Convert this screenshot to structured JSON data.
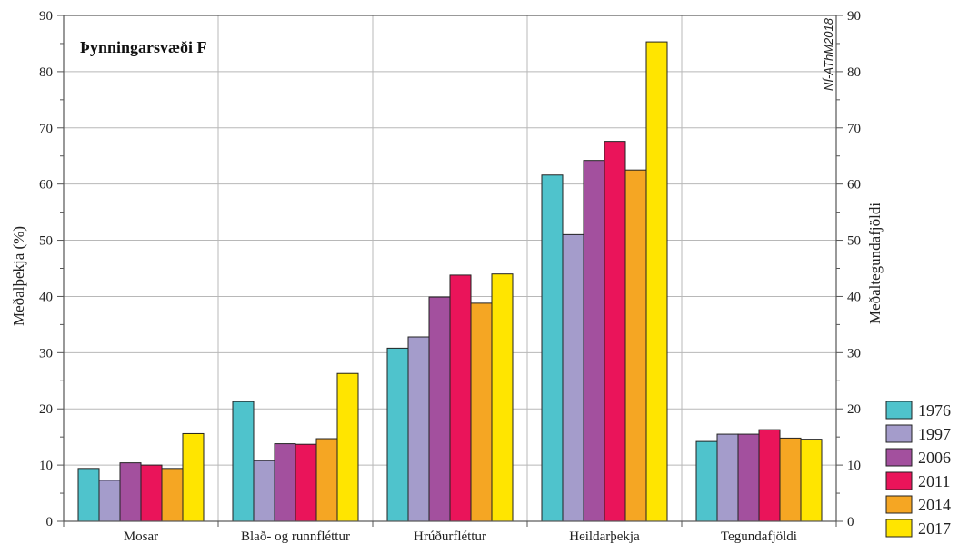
{
  "chart_data": {
    "type": "bar",
    "title": "Þynningarsvæði F",
    "watermark": "NÍ-AThM2018",
    "ylabel": "Meðalþekja (%)",
    "ylabel_right": "Meðaltegundafjöldi",
    "ylim": [
      0,
      90
    ],
    "yticks": [
      0,
      10,
      20,
      30,
      40,
      50,
      60,
      70,
      80,
      90
    ],
    "grid": true,
    "legend_position": "bottom-right",
    "categories": [
      "Mosar",
      "Blað- og runnfléttur",
      "Hrúðurfléttur",
      "Heildarþekja",
      "Tegundafjöldi"
    ],
    "series": [
      {
        "name": "1976",
        "color": "#4fc3cc",
        "values": [
          9.4,
          21.3,
          30.8,
          61.6,
          14.2
        ]
      },
      {
        "name": "1997",
        "color": "#a49ccb",
        "values": [
          7.3,
          10.8,
          32.8,
          51.0,
          15.5
        ]
      },
      {
        "name": "2006",
        "color": "#a3509e",
        "values": [
          10.4,
          13.8,
          39.9,
          64.2,
          15.5
        ]
      },
      {
        "name": "2011",
        "color": "#ea145a",
        "values": [
          10.0,
          13.7,
          43.8,
          67.6,
          16.3
        ]
      },
      {
        "name": "2014",
        "color": "#f5a623",
        "values": [
          9.4,
          14.7,
          38.8,
          62.5,
          14.8
        ]
      },
      {
        "name": "2017",
        "color": "#ffe500",
        "values": [
          15.6,
          26.3,
          44.0,
          85.3,
          14.6
        ]
      }
    ]
  }
}
